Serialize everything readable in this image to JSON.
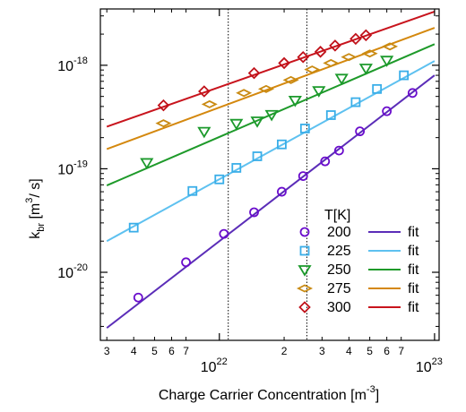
{
  "chart_data": {
    "type": "scatter",
    "xscale": "log",
    "yscale": "log",
    "xlim": [
      2.8e+21,
      1.05e+23
    ],
    "ylim": [
      2.2e-21,
      3.5e-18
    ],
    "xlabel": {
      "main": "Charge Carrier Concentration [m",
      "sup": "-3",
      "tail": "]"
    },
    "ylabel": {
      "main": "k",
      "sub": "br",
      "mid": " [m",
      "sup": "3",
      "tail": "/ s]"
    },
    "x_major_ticks": [
      {
        "value": 1e+22,
        "base": "10",
        "exp": "22"
      },
      {
        "value": 1e+23,
        "base": "10",
        "exp": "23"
      }
    ],
    "x_minor_ticks": [
      {
        "value": 3e+21,
        "label": "3"
      },
      {
        "value": 4e+21,
        "label": "4"
      },
      {
        "value": 5e+21,
        "label": "5"
      },
      {
        "value": 6e+21,
        "label": "6"
      },
      {
        "value": 7e+21,
        "label": "7"
      },
      {
        "value": 2e+22,
        "label": "2"
      },
      {
        "value": 3e+22,
        "label": "3"
      },
      {
        "value": 4e+22,
        "label": "4"
      },
      {
        "value": 5e+22,
        "label": "5"
      },
      {
        "value": 6e+22,
        "label": "6"
      },
      {
        "value": 7e+22,
        "label": "7"
      }
    ],
    "y_major_ticks": [
      {
        "value": 1e-20,
        "base": "10",
        "exp": "-20"
      },
      {
        "value": 1e-19,
        "base": "10",
        "exp": "-19"
      },
      {
        "value": 1e-18,
        "base": "10",
        "exp": "-18"
      }
    ],
    "vlines": [
      1.1e+22,
      2.55e+22
    ],
    "legend": {
      "title": "T[K]",
      "fit_label": "fit",
      "position": "bottom-right"
    },
    "series": [
      {
        "name": "200",
        "marker": "circle",
        "color": "#6a0dcc",
        "fit_color": "#5b2db8",
        "points": [
          [
            4.2e+21,
            5.7e-21
          ],
          [
            7e+21,
            1.25e-20
          ],
          [
            1.05e+22,
            2.35e-20
          ],
          [
            1.45e+22,
            3.8e-20
          ],
          [
            1.95e+22,
            6e-20
          ],
          [
            2.45e+22,
            8.5e-20
          ],
          [
            3.1e+22,
            1.18e-19
          ],
          [
            3.6e+22,
            1.5e-19
          ],
          [
            4.5e+22,
            2.3e-19
          ],
          [
            6e+22,
            3.6e-19
          ],
          [
            7.9e+22,
            5.4e-19
          ]
        ],
        "fit": [
          [
            3e+21,
            2.9e-21
          ],
          [
            1e+23,
            8e-19
          ]
        ]
      },
      {
        "name": "225",
        "marker": "square",
        "color": "#3aaee8",
        "fit_color": "#5ec1f0",
        "points": [
          [
            4e+21,
            2.7e-20
          ],
          [
            7.5e+21,
            6.1e-20
          ],
          [
            1e+22,
            7.9e-20
          ],
          [
            1.2e+22,
            1.02e-19
          ],
          [
            1.5e+22,
            1.32e-19
          ],
          [
            1.95e+22,
            1.72e-19
          ],
          [
            2.5e+22,
            2.45e-19
          ],
          [
            3.3e+22,
            3.3e-19
          ],
          [
            4.3e+22,
            4.4e-19
          ],
          [
            5.4e+22,
            5.9e-19
          ],
          [
            7.2e+22,
            8e-19
          ]
        ],
        "fit": [
          [
            3e+21,
            2e-20
          ],
          [
            1e+23,
            1.1e-18
          ]
        ]
      },
      {
        "name": "250",
        "marker": "triangle-down",
        "color": "#1c9a2c",
        "fit_color": "#1e9a2a",
        "points": [
          [
            4.6e+21,
            1.15e-19
          ],
          [
            8.5e+21,
            2.3e-19
          ],
          [
            1.2e+22,
            2.75e-19
          ],
          [
            1.5e+22,
            2.9e-19
          ],
          [
            1.75e+22,
            3.35e-19
          ],
          [
            2.25e+22,
            4.6e-19
          ],
          [
            2.9e+22,
            5.7e-19
          ],
          [
            3.7e+22,
            7.5e-19
          ],
          [
            4.8e+22,
            9.4e-19
          ],
          [
            6e+22,
            1.12e-18
          ]
        ],
        "fit": [
          [
            3e+21,
            6.9e-20
          ],
          [
            1e+23,
            1.6e-18
          ]
        ]
      },
      {
        "name": "275",
        "marker": "diamond-flat",
        "color": "#c98a12",
        "fit_color": "#d4880e",
        "points": [
          [
            5.5e+21,
            2.75e-19
          ],
          [
            9e+21,
            4.2e-19
          ],
          [
            1.3e+22,
            5.4e-19
          ],
          [
            1.65e+22,
            5.9e-19
          ],
          [
            2.15e+22,
            7.2e-19
          ],
          [
            2.7e+22,
            9.1e-19
          ],
          [
            3.3e+22,
            1.05e-18
          ],
          [
            4e+22,
            1.2e-18
          ],
          [
            5e+22,
            1.3e-18
          ],
          [
            6.2e+22,
            1.52e-18
          ]
        ],
        "fit": [
          [
            3e+21,
            1.55e-19
          ],
          [
            1e+23,
            2.3e-18
          ]
        ]
      },
      {
        "name": "300",
        "marker": "diamond",
        "color": "#c0121a",
        "fit_color": "#c8141d",
        "points": [
          [
            5.5e+21,
            4.1e-19
          ],
          [
            8.5e+21,
            5.6e-19
          ],
          [
            1.45e+22,
            8.4e-19
          ],
          [
            2e+22,
            1.05e-18
          ],
          [
            2.45e+22,
            1.2e-18
          ],
          [
            2.95e+22,
            1.35e-18
          ],
          [
            3.45e+22,
            1.55e-18
          ],
          [
            4.3e+22,
            1.8e-18
          ],
          [
            4.8e+22,
            1.95e-18
          ]
        ],
        "fit": [
          [
            3e+21,
            2.55e-19
          ],
          [
            1e+23,
            3.3e-18
          ]
        ]
      }
    ]
  }
}
